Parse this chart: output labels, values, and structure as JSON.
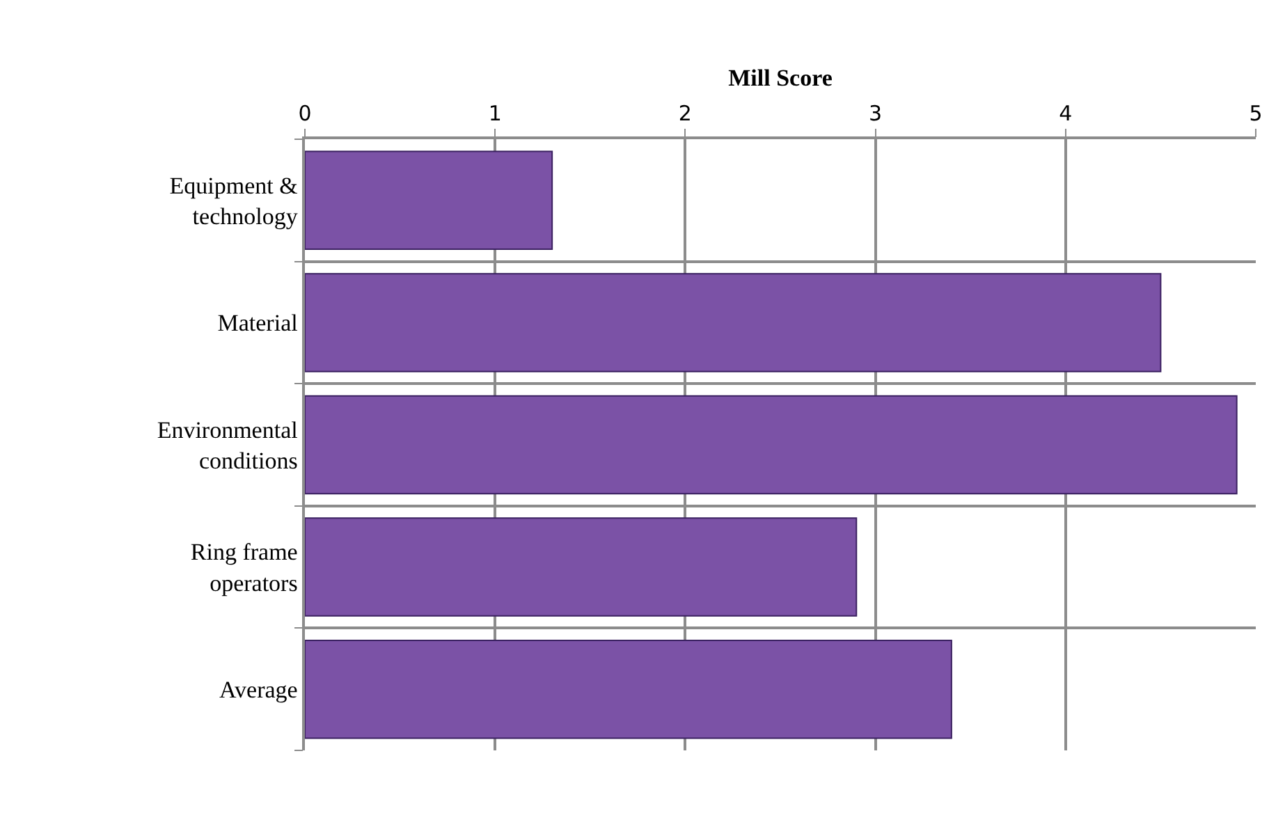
{
  "chart_data": {
    "type": "bar",
    "orientation": "horizontal",
    "xlabel": "Mill Score",
    "categories": [
      "Equipment & technology",
      "Material",
      "Environmental conditions",
      "Ring frame operators",
      "Average"
    ],
    "values": [
      1.3,
      4.5,
      4.9,
      2.9,
      3.4
    ],
    "color": "#7b52a6",
    "xlim": [
      0,
      5
    ],
    "xticks": [
      0,
      1,
      2,
      3,
      4,
      5
    ],
    "grid": true
  }
}
